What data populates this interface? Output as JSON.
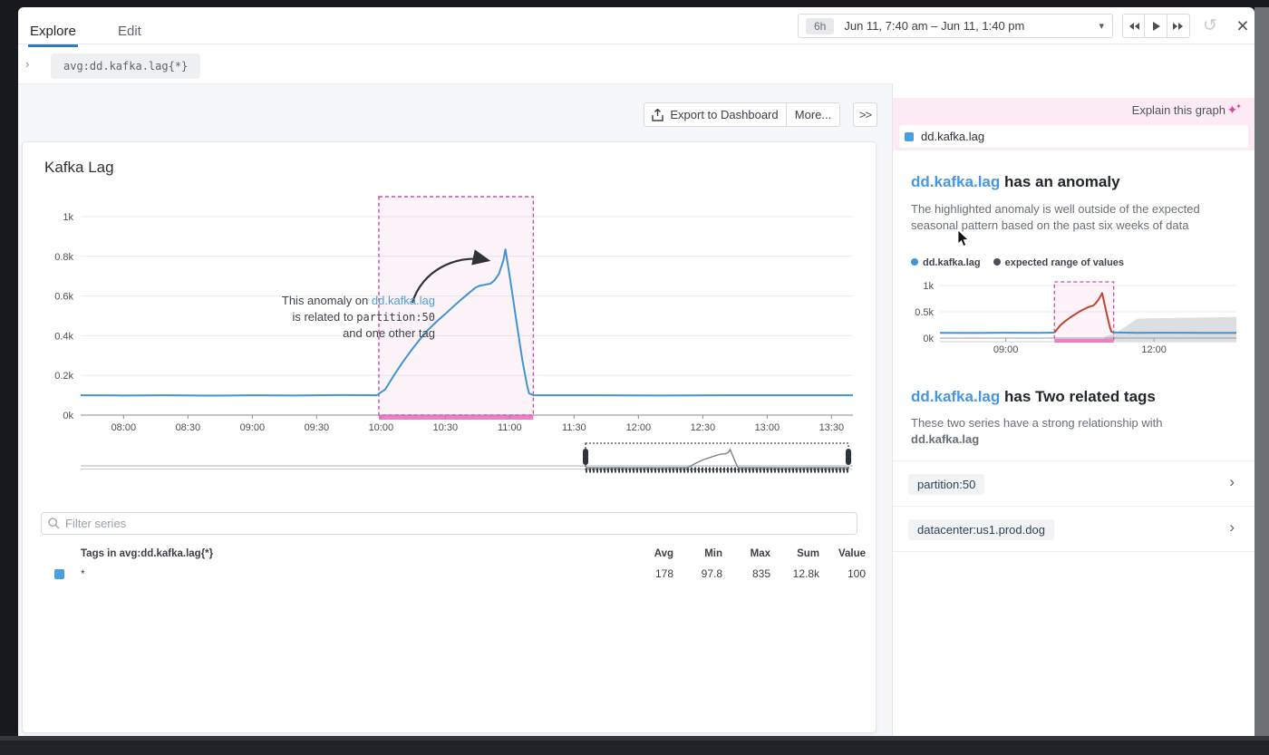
{
  "window": {
    "tabs": [
      {
        "label": "Explore"
      },
      {
        "label": "Edit"
      }
    ],
    "query": "avg:dd.kafka.lag{*}"
  },
  "timebar": {
    "range_badge": "6h",
    "range_text": "Jun 11, 7:40 am – Jun 11, 1:40 pm",
    "caret": "▾",
    "refresh_icon": "↺",
    "close_icon": "×"
  },
  "toolbar": {
    "export_label": "Export to Dashboard",
    "more_label": "More...",
    "collapse_label": ">>"
  },
  "chart": {
    "title": "Kafka Lag"
  },
  "annotation": {
    "line1_prefix": "This anomaly on ",
    "metric": "dd.kafka.lag",
    "line2_prefix": "is related to ",
    "tag": "partition:50",
    "line3": "and one other tag"
  },
  "filter": {
    "placeholder": "Filter series"
  },
  "table": {
    "tag_header": "Tags in avg:dd.kafka.lag{*}",
    "columns": [
      "Avg",
      "Min",
      "Max",
      "Sum",
      "Value"
    ],
    "rows": [
      {
        "tag": "*",
        "avg": "178",
        "min": "97.8",
        "max": "835",
        "sum": "12.8k",
        "value": "100"
      }
    ]
  },
  "panel": {
    "explain_label": "Explain this graph",
    "metric_pill": "dd.kafka.lag",
    "anomaly": {
      "metric": "dd.kafka.lag",
      "heading_rest": " has an anomaly",
      "description": "The highlighted anomaly is well outside of the expected seasonal pattern based on the past six weeks of data",
      "legend": [
        {
          "label": "dd.kafka.lag",
          "color": "#3f94d8"
        },
        {
          "label": "expected range of values",
          "color": "#4a5057"
        }
      ]
    },
    "related": {
      "metric": "dd.kafka.lag",
      "heading_rest": " has Two related tags",
      "description_prefix": "These two series have a strong relationship with ",
      "description_metric": "dd.kafka.lag",
      "tags": [
        "partition:50",
        "datacenter:us1.prod.dog"
      ]
    }
  },
  "chart_data": [
    {
      "type": "line",
      "title": "Kafka Lag",
      "x_start": "07:40",
      "x_end": "13:40",
      "x_ticks": [
        "08:00",
        "08:30",
        "09:00",
        "09:30",
        "10:00",
        "10:30",
        "11:00",
        "11:30",
        "12:00",
        "12:30",
        "13:00",
        "13:30"
      ],
      "y_ticks": [
        {
          "v": 0,
          "label": "0k"
        },
        {
          "v": 200,
          "label": "0.2k"
        },
        {
          "v": 400,
          "label": "0.4k"
        },
        {
          "v": 600,
          "label": "0.6k"
        },
        {
          "v": 800,
          "label": "0.8k"
        },
        {
          "v": 1000,
          "label": "1k"
        }
      ],
      "ylim": [
        0,
        1000
      ],
      "anomaly_window": {
        "x_start_min": 139,
        "x_end_min": 211
      },
      "series": [
        {
          "name": "avg:dd.kafka.lag{*}",
          "color": "#3f94d8",
          "points": [
            [
              0,
              100
            ],
            [
              20,
              99
            ],
            [
              40,
              100
            ],
            [
              60,
              98
            ],
            [
              80,
              100
            ],
            [
              100,
              99
            ],
            [
              120,
              101
            ],
            [
              138,
              100
            ],
            [
              142,
              130
            ],
            [
              146,
              200
            ],
            [
              150,
              265
            ],
            [
              154,
              325
            ],
            [
              158,
              380
            ],
            [
              162,
              430
            ],
            [
              166,
              472
            ],
            [
              170,
              510
            ],
            [
              174,
              550
            ],
            [
              178,
              588
            ],
            [
              181,
              615
            ],
            [
              184,
              642
            ],
            [
              186,
              652
            ],
            [
              189,
              658
            ],
            [
              191,
              662
            ],
            [
              193,
              680
            ],
            [
              195,
              712
            ],
            [
              197,
              778
            ],
            [
              198,
              835
            ],
            [
              200,
              700
            ],
            [
              202,
              555
            ],
            [
              204,
              410
            ],
            [
              206,
              270
            ],
            [
              208,
              155
            ],
            [
              209,
              110
            ],
            [
              211,
              100
            ],
            [
              240,
              100
            ],
            [
              270,
              99
            ],
            [
              300,
              100
            ],
            [
              330,
              100
            ],
            [
              360,
              100
            ]
          ]
        }
      ]
    },
    {
      "type": "line",
      "x_start": "07:40",
      "x_end": "13:40",
      "x_ticks": [
        "09:00",
        "12:00"
      ],
      "y_ticks": [
        {
          "v": 0,
          "label": "0k"
        },
        {
          "v": 500,
          "label": "0.5k"
        },
        {
          "v": 1000,
          "label": "1k"
        }
      ],
      "ylim": [
        0,
        1000
      ],
      "anomaly_window": {
        "x_start_min": 139,
        "x_end_min": 211
      },
      "series": [
        {
          "name": "dd.kafka.lag",
          "color": "#3f94d8",
          "segments": [
            [
              [
                0,
                100
              ],
              [
                40,
                98
              ],
              [
                80,
                101
              ],
              [
                120,
                100
              ],
              [
                139,
                103
              ]
            ],
            [
              [
                209,
                108
              ],
              [
                240,
                100
              ],
              [
                280,
                101
              ],
              [
                320,
                100
              ],
              [
                360,
                100
              ]
            ]
          ]
        },
        {
          "name": "anomalous values",
          "color": "#bf4433",
          "points": [
            [
              139,
              103
            ],
            [
              146,
              240
            ],
            [
              152,
              320
            ],
            [
              158,
              390
            ],
            [
              164,
              450
            ],
            [
              170,
              510
            ],
            [
              175,
              550
            ],
            [
              179,
              580
            ],
            [
              183,
              605
            ],
            [
              186,
              615
            ],
            [
              189,
              660
            ],
            [
              192,
              720
            ],
            [
              195,
              800
            ],
            [
              197,
              855
            ],
            [
              200,
              640
            ],
            [
              203,
              430
            ],
            [
              206,
              230
            ],
            [
              208,
              130
            ],
            [
              209,
              108
            ]
          ]
        },
        {
          "name": "expected range of values",
          "type": "band",
          "color": "#dcdee0",
          "upper": [
            [
              200,
              30
            ],
            [
              212,
              80
            ],
            [
              240,
              370
            ],
            [
              360,
              400
            ]
          ],
          "lower": [
            [
              200,
              -55
            ],
            [
              360,
              -55
            ]
          ]
        }
      ]
    }
  ]
}
